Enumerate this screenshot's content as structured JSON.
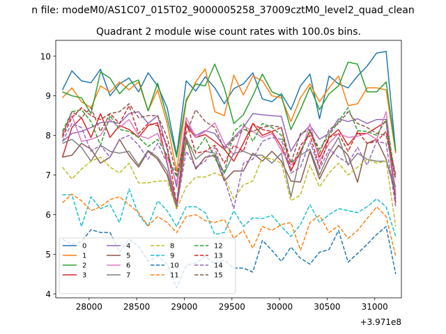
{
  "figure": {
    "suptitle": "n file: modeM0/AS1C07_015T02_9000005258_37009cztM0_level2_quad_clean",
    "title": "Quadrant 2 module wise count rates with 100.0s bins.",
    "offset_text": "+3.971e8"
  },
  "chart_data": {
    "type": "line",
    "title": "Quadrant 2 module wise count rates with 100.0s bins.",
    "xlabel": "",
    "ylabel": "",
    "x_offset": 397100000,
    "xlim": [
      27650,
      31280
    ],
    "ylim": [
      3.9,
      10.4
    ],
    "x_ticks": [
      28000,
      28500,
      29000,
      29500,
      30000,
      30500,
      31000
    ],
    "x_tick_labels": [
      "28000",
      "28500",
      "29000",
      "29500",
      "30000",
      "30500",
      "31000"
    ],
    "y_ticks": [
      4,
      5,
      6,
      7,
      8,
      9,
      10
    ],
    "y_tick_labels": [
      "4",
      "5",
      "6",
      "7",
      "8",
      "9",
      "10"
    ],
    "grid": false,
    "legend_location": "lower-left",
    "legend_columns": 4,
    "x": [
      27720,
      27820,
      27920,
      28020,
      28120,
      28220,
      28320,
      28420,
      28520,
      28620,
      28720,
      28820,
      28920,
      29020,
      29120,
      29220,
      29320,
      29420,
      29520,
      29620,
      29720,
      29820,
      29920,
      30020,
      30120,
      30220,
      30320,
      30420,
      30520,
      30620,
      30720,
      30820,
      30920,
      31020,
      31120,
      31220
    ],
    "series": [
      {
        "name": "0",
        "color": "#1f77b4",
        "dash": "solid",
        "values": [
          9.15,
          9.63,
          9.38,
          9.33,
          9.67,
          9.0,
          9.3,
          9.45,
          9.1,
          9.58,
          9.25,
          8.7,
          7.5,
          9.38,
          9.12,
          9.48,
          9.2,
          8.8,
          9.18,
          9.3,
          9.58,
          8.92,
          8.85,
          9.05,
          8.65,
          9.25,
          9.55,
          8.42,
          9.5,
          9.3,
          9.2,
          9.5,
          9.75,
          10.08,
          10.12,
          7.6
        ]
      },
      {
        "name": "1",
        "color": "#ff7f0e",
        "dash": "solid",
        "values": [
          8.95,
          9.2,
          8.85,
          8.7,
          9.25,
          9.1,
          9.35,
          9.15,
          9.35,
          8.62,
          9.15,
          8.3,
          7.1,
          8.85,
          9.35,
          9.68,
          8.6,
          8.5,
          9.52,
          9.02,
          9.5,
          9.38,
          9.0,
          8.95,
          8.35,
          8.95,
          9.3,
          8.85,
          9.2,
          9.5,
          8.75,
          8.8,
          9.2,
          9.2,
          9.15,
          7.55
        ]
      },
      {
        "name": "2",
        "color": "#2ca02c",
        "dash": "solid",
        "values": [
          9.1,
          9.0,
          8.95,
          8.55,
          9.6,
          9.45,
          9.05,
          9.3,
          9.4,
          8.62,
          9.32,
          8.45,
          7.45,
          8.9,
          9.3,
          9.25,
          9.8,
          9.2,
          8.3,
          8.52,
          9.0,
          9.55,
          9.1,
          9.0,
          8.15,
          8.65,
          9.22,
          8.65,
          9.05,
          9.25,
          9.85,
          9.8,
          9.1,
          9.1,
          9.35,
          7.6
        ]
      },
      {
        "name": "3",
        "color": "#d62728",
        "dash": "solid",
        "values": [
          7.45,
          8.2,
          8.45,
          7.95,
          8.55,
          7.95,
          8.25,
          8.15,
          7.95,
          8.25,
          8.32,
          7.3,
          6.25,
          8.25,
          7.95,
          8.02,
          7.85,
          7.65,
          7.35,
          7.8,
          8.3,
          8.0,
          8.1,
          7.72,
          7.1,
          7.6,
          8.12,
          7.45,
          7.95,
          8.15,
          7.75,
          8.05,
          8.05,
          8.2,
          8.35,
          6.3
        ]
      },
      {
        "name": "4",
        "color": "#9467bd",
        "dash": "solid",
        "values": [
          7.85,
          8.05,
          8.1,
          8.2,
          8.32,
          8.35,
          8.3,
          8.55,
          8.6,
          8.3,
          8.5,
          7.65,
          6.7,
          8.3,
          8.0,
          8.12,
          8.05,
          7.7,
          7.95,
          8.2,
          8.55,
          8.52,
          8.5,
          8.48,
          7.6,
          8.0,
          8.25,
          7.9,
          8.05,
          8.42,
          8.35,
          8.42,
          8.3,
          8.4,
          8.4,
          6.4
        ]
      },
      {
        "name": "5",
        "color": "#8c564b",
        "dash": "solid",
        "values": [
          7.45,
          7.5,
          7.8,
          7.65,
          7.3,
          7.45,
          7.9,
          7.5,
          7.2,
          7.6,
          7.4,
          7.0,
          6.15,
          7.9,
          7.15,
          7.45,
          7.5,
          6.85,
          7.1,
          7.1,
          7.55,
          7.35,
          7.6,
          7.35,
          6.85,
          6.82,
          7.6,
          6.9,
          7.4,
          7.75,
          7.5,
          6.82,
          7.8,
          7.9,
          7.4,
          6.5
        ]
      },
      {
        "name": "6",
        "color": "#e377c2",
        "dash": "solid",
        "values": [
          8.05,
          8.5,
          7.85,
          7.9,
          8.0,
          8.4,
          8.2,
          8.4,
          8.0,
          7.92,
          8.05,
          7.45,
          6.8,
          8.45,
          7.95,
          8.1,
          8.32,
          7.8,
          7.5,
          8.25,
          8.1,
          7.95,
          8.05,
          7.62,
          7.25,
          7.5,
          8.3,
          7.35,
          7.8,
          8.05,
          7.95,
          7.98,
          8.05,
          7.9,
          8.6,
          6.55
        ]
      },
      {
        "name": "7",
        "color": "#7f7f7f",
        "dash": "solid",
        "values": [
          7.8,
          7.9,
          7.7,
          7.35,
          7.75,
          7.6,
          7.55,
          7.6,
          7.25,
          7.62,
          7.45,
          7.1,
          6.25,
          7.95,
          7.4,
          7.6,
          7.55,
          7.05,
          7.55,
          7.6,
          7.5,
          7.5,
          7.3,
          7.55,
          6.45,
          7.5,
          7.65,
          7.0,
          7.55,
          7.95,
          7.25,
          7.55,
          7.4,
          7.35,
          7.35,
          6.7
        ]
      },
      {
        "name": "8",
        "color": "#bcbd22",
        "dash": "dashed",
        "values": [
          7.2,
          6.9,
          7.15,
          7.35,
          7.45,
          7.2,
          7.05,
          7.3,
          6.8,
          6.8,
          6.85,
          6.85,
          6.15,
          6.7,
          6.95,
          6.95,
          7.05,
          6.95,
          6.4,
          6.75,
          6.85,
          7.45,
          7.4,
          7.3,
          6.35,
          6.5,
          7.25,
          6.7,
          7.05,
          7.3,
          7.0,
          7.2,
          7.4,
          7.3,
          7.35,
          5.7
        ]
      },
      {
        "name": "9",
        "color": "#17becf",
        "dash": "dashed",
        "values": [
          6.5,
          6.5,
          5.7,
          6.45,
          6.15,
          6.25,
          5.8,
          6.65,
          6.0,
          5.7,
          6.35,
          6.1,
          5.7,
          6.2,
          6.2,
          6.05,
          5.5,
          5.55,
          6.1,
          5.7,
          5.92,
          5.9,
          5.98,
          5.7,
          5.45,
          5.75,
          6.25,
          5.8,
          6.0,
          6.15,
          6.1,
          6.05,
          6.2,
          6.4,
          6.2,
          5.45
        ]
      },
      {
        "name": "10",
        "color": "#1f77b4",
        "dash": "dashed",
        "values": [
          5.38,
          5.25,
          5.32,
          5.62,
          5.55,
          5.55,
          5.05,
          5.38,
          5.2,
          4.82,
          4.95,
          4.75,
          4.15,
          4.72,
          4.78,
          4.95,
          4.75,
          4.85,
          4.65,
          4.65,
          4.55,
          5.35,
          5.1,
          4.82,
          5.18,
          4.9,
          4.75,
          5.05,
          5.12,
          5.6,
          4.8,
          5.02,
          5.25,
          5.5,
          5.7,
          4.5
        ]
      },
      {
        "name": "11",
        "color": "#ff7f0e",
        "dash": "dashed",
        "values": [
          6.3,
          6.52,
          6.35,
          6.1,
          6.2,
          6.38,
          6.45,
          6.25,
          6.05,
          5.72,
          5.95,
          5.8,
          5.55,
          5.95,
          6.0,
          5.85,
          5.8,
          5.88,
          5.4,
          5.6,
          5.15,
          5.7,
          5.6,
          5.75,
          5.8,
          5.1,
          5.8,
          5.98,
          5.55,
          5.72,
          5.4,
          5.6,
          5.9,
          6.2,
          5.95,
          4.95
        ]
      },
      {
        "name": "12",
        "color": "#2ca02c",
        "dash": "dashed",
        "values": [
          8.1,
          8.6,
          8.65,
          8.35,
          7.75,
          8.5,
          8.15,
          8.1,
          7.95,
          7.72,
          7.9,
          7.5,
          6.95,
          7.8,
          7.6,
          7.95,
          7.42,
          7.05,
          8.1,
          8.3,
          7.85,
          8.3,
          8.2,
          8.0,
          7.3,
          7.55,
          8.1,
          7.65,
          8.0,
          8.35,
          8.7,
          8.12,
          8.1,
          8.0,
          8.4,
          6.9
        ]
      },
      {
        "name": "13",
        "color": "#d62728",
        "dash": "dashed",
        "values": [
          7.95,
          8.45,
          8.7,
          8.5,
          8.4,
          8.55,
          8.3,
          8.75,
          8.05,
          8.3,
          8.25,
          7.75,
          6.25,
          8.35,
          7.55,
          7.6,
          7.75,
          7.3,
          7.75,
          7.6,
          8.3,
          8.15,
          8.1,
          8.2,
          7.1,
          7.75,
          8.0,
          7.2,
          7.95,
          8.05,
          7.6,
          8.1,
          7.8,
          7.85,
          8.1,
          7.0
        ]
      },
      {
        "name": "14",
        "color": "#9467bd",
        "dash": "dashed",
        "values": [
          7.85,
          8.3,
          8.2,
          7.6,
          7.75,
          7.45,
          7.9,
          8.0,
          7.75,
          7.4,
          7.8,
          7.3,
          6.2,
          7.6,
          7.2,
          7.35,
          7.7,
          6.9,
          6.15,
          7.3,
          7.4,
          7.85,
          7.95,
          7.9,
          7.05,
          7.2,
          7.85,
          7.15,
          7.65,
          7.45,
          7.3,
          7.7,
          7.25,
          7.85,
          7.8,
          6.2
        ]
      },
      {
        "name": "15",
        "color": "#8c564b",
        "dash": "dashed",
        "values": [
          8.0,
          8.6,
          8.45,
          8.7,
          8.1,
          8.55,
          8.6,
          8.8,
          8.45,
          8.5,
          8.5,
          7.95,
          7.0,
          8.05,
          8.65,
          8.35,
          8.2,
          7.65,
          7.9,
          8.15,
          8.1,
          8.2,
          8.25,
          8.2,
          7.3,
          8.05,
          8.15,
          7.55,
          8.15,
          8.3,
          8.6,
          8.3,
          8.2,
          8.05,
          8.0,
          6.9
        ]
      }
    ]
  }
}
